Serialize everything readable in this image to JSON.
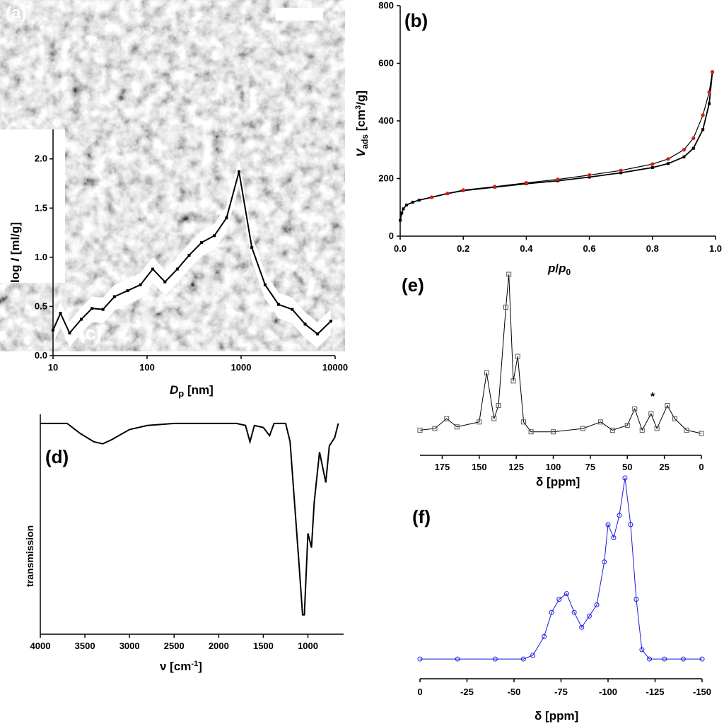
{
  "panel_labels": {
    "a": "(a)",
    "b": "(b)",
    "c": "(c)",
    "d": "(d)",
    "e": "(e)",
    "f": "(f)"
  },
  "colors": {
    "sem_bg": "#8a8a8a",
    "black": "#000000",
    "red": "#d81b1b",
    "blue": "#1a1ae0"
  },
  "chart_data": [
    {
      "id": "c",
      "type": "line",
      "xscale": "log",
      "xlabel": "Dp [nm]",
      "ylabel": "log I [ml/g]",
      "xlim": [
        10,
        10000
      ],
      "ylim": [
        0,
        2.3
      ],
      "x_ticks": [
        "10",
        "100",
        "1000",
        "10000"
      ],
      "y_ticks": [
        "0.0",
        "0.5",
        "1.0",
        "1.5",
        "2.0"
      ],
      "x": [
        10,
        12,
        15,
        20,
        26,
        34,
        45,
        62,
        85,
        115,
        155,
        210,
        280,
        380,
        520,
        700,
        950,
        1300,
        1800,
        2500,
        3500,
        4800,
        6500,
        9000
      ],
      "y": [
        0.26,
        0.43,
        0.23,
        0.37,
        0.48,
        0.47,
        0.6,
        0.66,
        0.72,
        0.88,
        0.75,
        0.88,
        1.02,
        1.15,
        1.22,
        1.4,
        1.87,
        1.1,
        0.72,
        0.52,
        0.47,
        0.32,
        0.22,
        0.35
      ]
    },
    {
      "id": "b",
      "type": "line",
      "xlabel": "p/p0",
      "ylabel": "Vads [cm3/g]",
      "xlim": [
        0,
        1
      ],
      "ylim": [
        0,
        800
      ],
      "x_ticks": [
        "0.0",
        "0.2",
        "0.4",
        "0.6",
        "0.8",
        "1.0"
      ],
      "y_ticks": [
        "0",
        "200",
        "400",
        "600",
        "800"
      ],
      "series": [
        {
          "x": [
            0.0,
            0.005,
            0.01,
            0.02,
            0.04,
            0.06,
            0.1,
            0.15,
            0.2,
            0.3,
            0.4,
            0.5,
            0.6,
            0.7,
            0.8,
            0.85,
            0.9,
            0.93,
            0.96,
            0.98,
            0.99
          ],
          "y": [
            55,
            80,
            95,
            108,
            118,
            125,
            135,
            148,
            158,
            170,
            182,
            192,
            205,
            220,
            238,
            252,
            275,
            305,
            370,
            460,
            570
          ]
        },
        {
          "x": [
            0.1,
            0.15,
            0.2,
            0.3,
            0.4,
            0.5,
            0.6,
            0.7,
            0.8,
            0.85,
            0.9,
            0.93,
            0.96,
            0.98,
            0.99
          ],
          "y": [
            135,
            148,
            160,
            172,
            185,
            197,
            212,
            228,
            250,
            268,
            300,
            340,
            420,
            500,
            570
          ]
        }
      ]
    },
    {
      "id": "d",
      "type": "line",
      "xlabel": "ν [cm-1]",
      "ylabel": "transmission",
      "xlim": [
        4000,
        600
      ],
      "x_ticks": [
        "4000",
        "3500",
        "3000",
        "2500",
        "2000",
        "1500",
        "1000"
      ],
      "x": [
        4000,
        3700,
        3550,
        3400,
        3300,
        3200,
        3000,
        2800,
        2500,
        2000,
        1800,
        1700,
        1650,
        1600,
        1500,
        1430,
        1380,
        1250,
        1200,
        1150,
        1100,
        1060,
        1040,
        1000,
        960,
        930,
        870,
        800,
        760,
        700,
        660
      ],
      "y": [
        0.99,
        0.99,
        0.94,
        0.9,
        0.89,
        0.91,
        0.96,
        0.98,
        0.99,
        0.99,
        0.99,
        0.98,
        0.9,
        0.98,
        0.97,
        0.93,
        0.99,
        0.99,
        0.9,
        0.6,
        0.3,
        0.05,
        0.05,
        0.45,
        0.38,
        0.6,
        0.85,
        0.7,
        0.88,
        0.92,
        0.99
      ]
    },
    {
      "id": "e",
      "type": "line",
      "xlabel": "δ [ppm]",
      "xlim": [
        190,
        0
      ],
      "x_ticks": [
        "175",
        "150",
        "125",
        "100",
        "75",
        "50",
        "25",
        "0"
      ],
      "annotation": "*",
      "x": [
        190,
        180,
        172,
        165,
        150,
        145,
        140,
        137,
        132,
        130,
        127,
        124,
        120,
        115,
        100,
        80,
        68,
        60,
        50,
        45,
        40,
        34,
        30,
        23,
        18,
        10,
        0
      ],
      "y": [
        0.05,
        0.06,
        0.12,
        0.07,
        0.1,
        0.4,
        0.12,
        0.2,
        0.8,
        1.0,
        0.35,
        0.5,
        0.1,
        0.04,
        0.04,
        0.06,
        0.1,
        0.05,
        0.08,
        0.18,
        0.05,
        0.15,
        0.06,
        0.2,
        0.12,
        0.05,
        0.03
      ]
    },
    {
      "id": "f",
      "type": "line",
      "xlabel": "δ [ppm]",
      "xlim": [
        0,
        -150
      ],
      "x_ticks": [
        "0",
        "-25",
        "-50",
        "-75",
        "-100",
        "-125",
        "-150"
      ],
      "x": [
        0,
        -20,
        -40,
        -55,
        -60,
        -66,
        -70,
        -74,
        -78,
        -82,
        -86,
        -90,
        -94,
        -98,
        -100,
        -103,
        -106,
        -109,
        -112,
        -115,
        -118,
        -122,
        -130,
        -140,
        -150
      ],
      "y": [
        0.03,
        0.03,
        0.03,
        0.03,
        0.05,
        0.15,
        0.28,
        0.35,
        0.38,
        0.28,
        0.2,
        0.26,
        0.32,
        0.55,
        0.75,
        0.68,
        0.8,
        1.0,
        0.75,
        0.35,
        0.08,
        0.03,
        0.03,
        0.03,
        0.03
      ]
    }
  ]
}
